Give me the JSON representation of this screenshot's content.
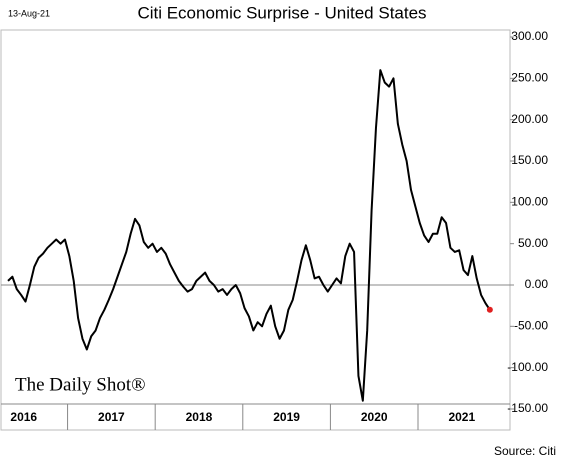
{
  "chart_data": {
    "type": "line",
    "title": "Citi Economic Surprise - United States",
    "date_label": "13-Aug-21",
    "source": "Source: Citi",
    "brand": "The Daily Shot®",
    "color": "#000000",
    "end_marker_color": "#e02020",
    "x": [
      2016.32,
      2016.37,
      2016.42,
      2016.47,
      2016.52,
      2016.57,
      2016.62,
      2016.67,
      2016.72,
      2016.77,
      2016.82,
      2016.87,
      2016.92,
      2016.97,
      2017.02,
      2017.07,
      2017.12,
      2017.17,
      2017.22,
      2017.27,
      2017.32,
      2017.37,
      2017.42,
      2017.47,
      2017.52,
      2017.57,
      2017.62,
      2017.67,
      2017.72,
      2017.77,
      2017.82,
      2017.87,
      2017.92,
      2017.97,
      2018.02,
      2018.07,
      2018.12,
      2018.17,
      2018.22,
      2018.27,
      2018.32,
      2018.37,
      2018.42,
      2018.47,
      2018.52,
      2018.57,
      2018.62,
      2018.67,
      2018.72,
      2018.77,
      2018.82,
      2018.87,
      2018.92,
      2018.97,
      2019.02,
      2019.07,
      2019.12,
      2019.17,
      2019.22,
      2019.27,
      2019.32,
      2019.37,
      2019.42,
      2019.47,
      2019.52,
      2019.57,
      2019.62,
      2019.67,
      2019.72,
      2019.77,
      2019.82,
      2019.87,
      2019.92,
      2019.97,
      2020.02,
      2020.07,
      2020.12,
      2020.17,
      2020.22,
      2020.27,
      2020.32,
      2020.37,
      2020.42,
      2020.47,
      2020.52,
      2020.57,
      2020.62,
      2020.67,
      2020.72,
      2020.77,
      2020.82,
      2020.87,
      2020.92,
      2020.97,
      2021.02,
      2021.07,
      2021.12,
      2021.17,
      2021.22,
      2021.27,
      2021.32,
      2021.37,
      2021.42,
      2021.47,
      2021.52,
      2021.57,
      2021.62,
      2021.67,
      2021.72,
      2021.77,
      2021.82
    ],
    "values": [
      5,
      10,
      -5,
      -12,
      -20,
      0,
      22,
      33,
      38,
      45,
      50,
      55,
      50,
      55,
      35,
      5,
      -40,
      -65,
      -78,
      -62,
      -55,
      -40,
      -30,
      -18,
      -5,
      10,
      25,
      40,
      62,
      80,
      72,
      52,
      45,
      50,
      40,
      45,
      38,
      25,
      15,
      5,
      -2,
      -8,
      -5,
      5,
      10,
      15,
      5,
      0,
      -8,
      -5,
      -12,
      -5,
      0,
      -10,
      -28,
      -38,
      -55,
      -45,
      -50,
      -35,
      -25,
      -50,
      -65,
      -55,
      -30,
      -18,
      5,
      30,
      48,
      30,
      8,
      10,
      0,
      -8,
      0,
      8,
      2,
      35,
      50,
      40,
      -110,
      -140,
      -55,
      90,
      190,
      260,
      245,
      240,
      250,
      195,
      170,
      150,
      115,
      95,
      75,
      60,
      52,
      62,
      62,
      82,
      75,
      45,
      40,
      42,
      18,
      12,
      35,
      8,
      -12,
      -22,
      -30
    ],
    "xlim": [
      2016.32,
      2022.05
    ],
    "xticks": [
      {
        "value": 2016.5,
        "label": "2016"
      },
      {
        "value": 2017.5,
        "label": "2017"
      },
      {
        "value": 2018.5,
        "label": "2018"
      },
      {
        "value": 2019.5,
        "label": "2019"
      },
      {
        "value": 2020.5,
        "label": "2020"
      },
      {
        "value": 2021.5,
        "label": "2021"
      }
    ],
    "ylim": [
      -150,
      300
    ],
    "yticks": [
      {
        "value": 300,
        "label": "300.00"
      },
      {
        "value": 250,
        "label": "250.00"
      },
      {
        "value": 200,
        "label": "200.00"
      },
      {
        "value": 150,
        "label": "150.00"
      },
      {
        "value": 100,
        "label": "100.00"
      },
      {
        "value": 50,
        "label": "50.00"
      },
      {
        "value": 0,
        "label": "0.00"
      },
      {
        "value": -50,
        "label": "-50.00"
      },
      {
        "value": -100,
        "label": "-100.00"
      },
      {
        "value": -150,
        "label": "-150.00"
      }
    ],
    "zero_line": true
  }
}
